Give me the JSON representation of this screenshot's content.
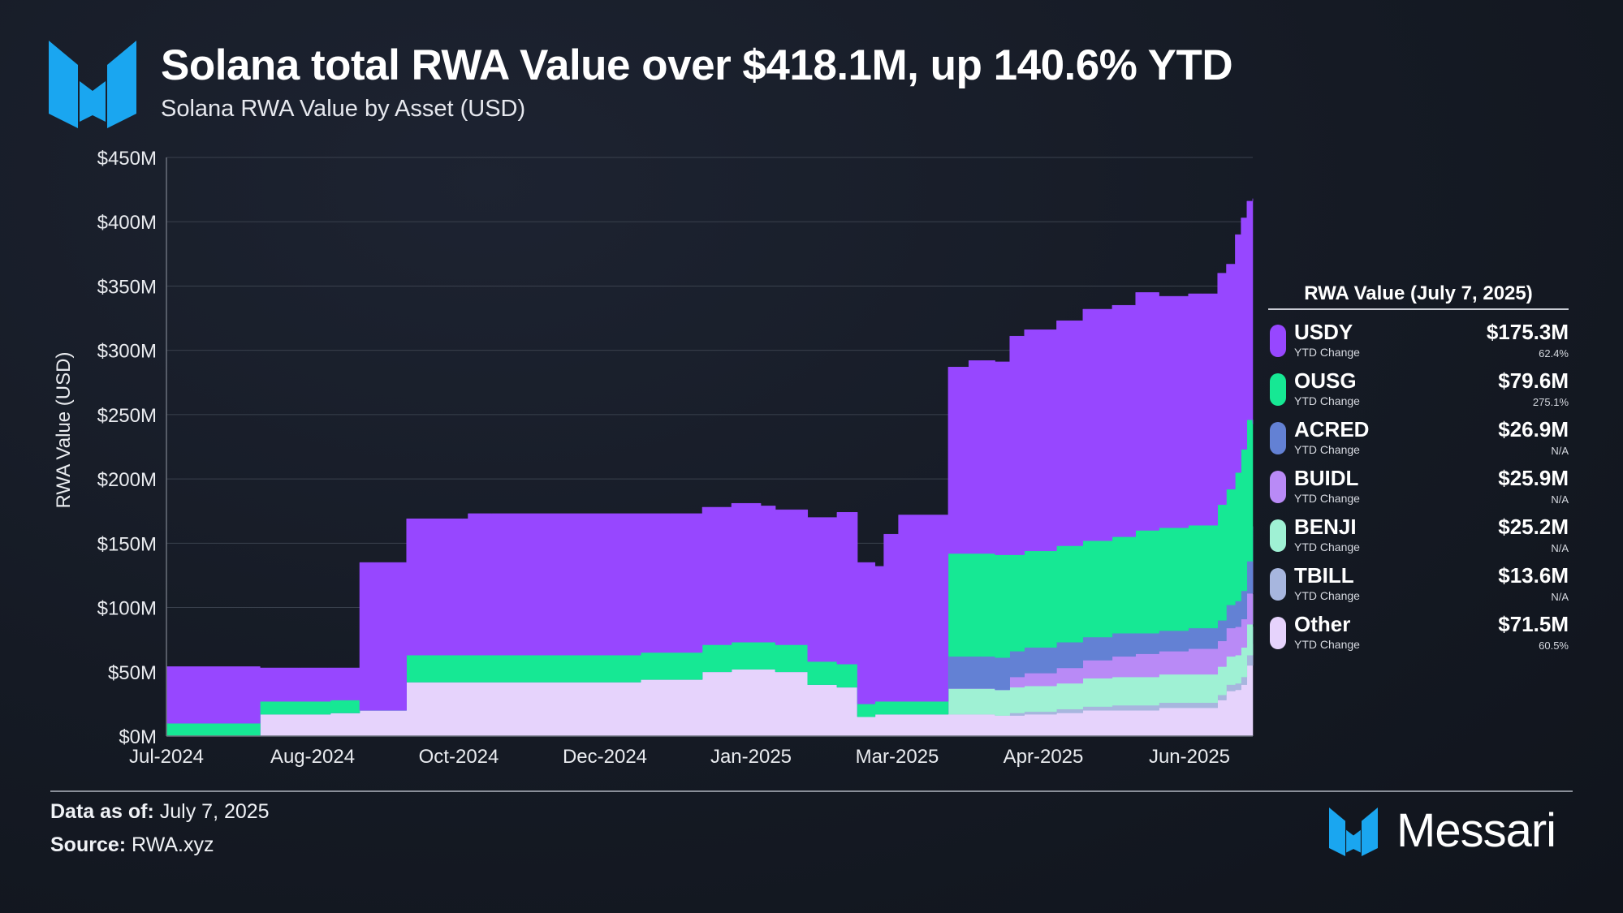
{
  "header": {
    "title": "Solana total RWA Value over $418.1M, up 140.6% YTD",
    "subtitle": "Solana RWA Value by Asset (USD)"
  },
  "chart_data": {
    "type": "area",
    "stacked": true,
    "ylabel": "RWA Value (USD)",
    "ylim": [
      0,
      450
    ],
    "yticks": [
      "$0M",
      "$50M",
      "$100M",
      "$150M",
      "$200M",
      "$250M",
      "$300M",
      "$350M",
      "$400M",
      "$450M"
    ],
    "xticks": [
      "Jul-2024",
      "Aug-2024",
      "Oct-2024",
      "Dec-2024",
      "Jan-2025",
      "Mar-2025",
      "Apr-2025",
      "Jun-2025"
    ],
    "grid": "horizontal",
    "x": [
      "2024-07-01",
      "2024-08-01",
      "2024-08-02",
      "2024-08-15",
      "2024-08-16",
      "2024-08-25",
      "2024-08-26",
      "2024-09-01",
      "2024-09-05",
      "2024-09-10",
      "2024-09-20",
      "2024-09-21",
      "2024-10-10",
      "2024-10-12",
      "2024-10-20",
      "2024-11-15",
      "2024-12-10",
      "2024-12-20",
      "2024-12-31",
      "2025-01-10",
      "2025-01-20",
      "2025-01-25",
      "2025-02-05",
      "2025-02-15",
      "2025-02-20",
      "2025-02-22",
      "2025-02-28",
      "2025-03-03",
      "2025-03-08",
      "2025-03-10",
      "2025-03-12",
      "2025-03-25",
      "2025-04-01",
      "2025-04-05",
      "2025-04-10",
      "2025-04-15",
      "2025-04-20",
      "2025-05-01",
      "2025-05-10",
      "2025-05-20",
      "2025-05-28",
      "2025-06-05",
      "2025-06-15",
      "2025-06-20",
      "2025-06-25",
      "2025-06-28",
      "2025-07-01",
      "2025-07-03",
      "2025-07-05",
      "2025-07-07"
    ],
    "series": [
      {
        "name": "Other",
        "color": "#e6d3fc",
        "values": [
          0,
          0,
          17,
          17,
          17,
          17,
          18,
          18,
          20,
          20,
          20,
          42,
          42,
          42,
          42,
          42,
          44,
          44,
          50,
          52,
          52,
          50,
          40,
          38,
          38,
          15,
          17,
          17,
          17,
          17,
          17,
          17,
          17,
          17,
          16,
          16,
          17,
          18,
          20,
          20,
          20,
          22,
          22,
          22,
          28,
          35,
          36,
          40,
          55,
          71.5
        ]
      },
      {
        "name": "TBILL",
        "color": "#a7b6de",
        "values": [
          0,
          0,
          0,
          0,
          0,
          0,
          0,
          0,
          0,
          0,
          0,
          0,
          0,
          0,
          0,
          0,
          0,
          0,
          0,
          0,
          0,
          0,
          0,
          0,
          0,
          0,
          0,
          0,
          0,
          0,
          0,
          0,
          0,
          0,
          0,
          2,
          2,
          3,
          3,
          4,
          4,
          4,
          4,
          4,
          4,
          5,
          5,
          6,
          8,
          13.6
        ]
      },
      {
        "name": "BENJI",
        "color": "#9ff1d4",
        "values": [
          0,
          0,
          0,
          0,
          0,
          0,
          0,
          0,
          0,
          0,
          0,
          0,
          0,
          0,
          0,
          0,
          0,
          0,
          0,
          0,
          0,
          0,
          0,
          0,
          0,
          0,
          0,
          0,
          0,
          0,
          0,
          20,
          20,
          20,
          20,
          20,
          20,
          20,
          22,
          22,
          22,
          22,
          22,
          22,
          22,
          22,
          22,
          23,
          24,
          25.2
        ]
      },
      {
        "name": "BUIDL",
        "color": "#b98af6",
        "values": [
          0,
          0,
          0,
          0,
          0,
          0,
          0,
          0,
          0,
          0,
          0,
          0,
          0,
          0,
          0,
          0,
          0,
          0,
          0,
          0,
          0,
          0,
          0,
          0,
          0,
          0,
          0,
          0,
          0,
          0,
          0,
          0,
          0,
          0,
          0,
          8,
          10,
          12,
          14,
          16,
          18,
          18,
          20,
          20,
          20,
          22,
          22,
          22,
          24,
          25.9
        ]
      },
      {
        "name": "ACRED",
        "color": "#6381d4",
        "values": [
          0,
          0,
          0,
          0,
          0,
          0,
          0,
          0,
          0,
          0,
          0,
          0,
          0,
          0,
          0,
          0,
          0,
          0,
          0,
          0,
          0,
          0,
          0,
          0,
          0,
          0,
          0,
          0,
          0,
          0,
          0,
          25,
          25,
          25,
          25,
          20,
          20,
          20,
          18,
          18,
          16,
          16,
          16,
          16,
          16,
          18,
          20,
          22,
          25,
          26.9
        ]
      },
      {
        "name": "OUSG",
        "color": "#16e894",
        "values": [
          10,
          10,
          10,
          10,
          10,
          10,
          10,
          10,
          0,
          0,
          0,
          21,
          21,
          21,
          21,
          21,
          21,
          21,
          21,
          21,
          21,
          21,
          18,
          18,
          18,
          10,
          10,
          10,
          10,
          10,
          10,
          80,
          80,
          80,
          80,
          75,
          75,
          75,
          75,
          75,
          80,
          80,
          80,
          80,
          90,
          90,
          100,
          110,
          110,
          79.6
        ]
      },
      {
        "name": "USDY",
        "color": "#9747ff",
        "values": [
          44,
          44,
          26,
          26,
          26,
          26,
          25,
          25,
          115,
          115,
          115,
          106,
          106,
          110,
          110,
          110,
          108,
          108,
          107,
          108,
          106,
          105,
          112,
          118,
          118,
          110,
          105,
          130,
          145,
          145,
          145,
          145,
          150,
          150,
          150,
          170,
          172,
          175,
          180,
          180,
          185,
          180,
          180,
          180,
          180,
          175,
          185,
          180,
          170,
          175.3
        ]
      }
    ],
    "legend": {
      "title": "RWA Value (July 7, 2025)",
      "position": "right",
      "change_label": "YTD Change",
      "items": [
        {
          "name": "USDY",
          "value": "$175.3M",
          "change": "62.4%",
          "color": "#9747ff"
        },
        {
          "name": "OUSG",
          "value": "$79.6M",
          "change": "275.1%",
          "color": "#16e894"
        },
        {
          "name": "ACRED",
          "value": "$26.9M",
          "change": "N/A",
          "color": "#6381d4"
        },
        {
          "name": "BUIDL",
          "value": "$25.9M",
          "change": "N/A",
          "color": "#b98af6"
        },
        {
          "name": "BENJI",
          "value": "$25.2M",
          "change": "N/A",
          "color": "#9ff1d4"
        },
        {
          "name": "TBILL",
          "value": "$13.6M",
          "change": "N/A",
          "color": "#a7b6de"
        },
        {
          "name": "Other",
          "value": "$71.5M",
          "change": "60.5%",
          "color": "#e6d3fc"
        }
      ]
    }
  },
  "footer": {
    "data_label": "Data as of:",
    "data_value": "July 7, 2025",
    "source_label": "Source:",
    "source_value": "RWA.xyz",
    "brand_name": "Messari"
  },
  "colors": {
    "brand_blue": "#1aa6f0",
    "grid": "#3a414d",
    "axis_text": "#e9ebef"
  }
}
